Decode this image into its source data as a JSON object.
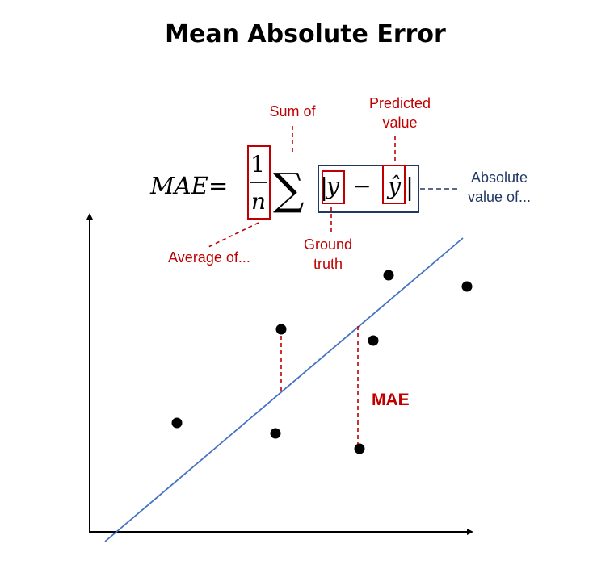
{
  "title": "Mean Absolute Error",
  "formula": {
    "lhs": "MAE",
    "equals": "=",
    "numerator": "1",
    "denominator": "n",
    "sum": "∑",
    "bar": "|",
    "y": "y",
    "minus": "−",
    "y_hat": "ŷ"
  },
  "annotations": {
    "sum_of": "Sum of",
    "predicted_line1": "Predicted",
    "predicted_line2": "value",
    "absolute_line1": "Absolute",
    "absolute_line2": "value of...",
    "average_of": "Average of...",
    "ground_line1": "Ground",
    "ground_line2": "truth",
    "mae": "MAE"
  },
  "colors": {
    "annotation_red": "#c00000",
    "annotation_blue": "#203864",
    "regression_line": "#4472c4",
    "points": "#000000",
    "axes": "#000000"
  },
  "icons": {
    "x_axis_arrow": "arrow-right-icon",
    "y_axis_arrow": "arrow-up-icon"
  }
}
